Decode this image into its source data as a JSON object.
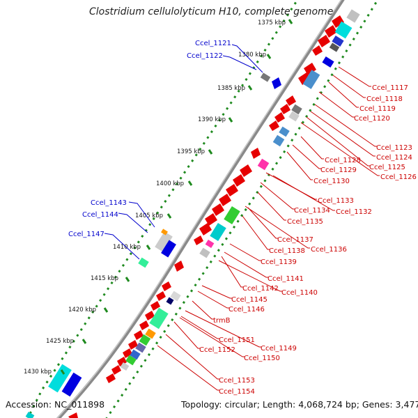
{
  "title": "Clostridium cellulolyticum H10, complete genome",
  "accession": "Accession: NC_011898",
  "summary": "Topology: circular; Length: 4,068,724 bp; Genes: 3,477",
  "ticks": [
    "1375 kbp",
    "1380 kbp",
    "1385 kbp",
    "1390 kbp",
    "1395 kbp",
    "1400 kbp",
    "1405 kbp",
    "1410 kbp",
    "1415 kbp",
    "1420 kbp",
    "1425 kbp",
    "1430 kbp"
  ],
  "genes_left": [
    "Ccel_1121",
    "Ccel_1122",
    "Ccel_1143",
    "Ccel_1144",
    "Ccel_1147"
  ],
  "genes_right": [
    "Ccel_1117",
    "Ccel_1118",
    "Ccel_1119",
    "Ccel_1120",
    "Ccel_1123",
    "Ccel_1124",
    "Ccel_1125",
    "Ccel_1126",
    "Ccel_1128",
    "Ccel_1129",
    "Ccel_1130",
    "Ccel_1133",
    "Ccel_1134",
    "Ccel_1132",
    "Ccel_1135",
    "Ccel_1137",
    "Ccel_1138",
    "Ccel_1136",
    "Ccel_1139",
    "Ccel_1141",
    "Ccel_1142",
    "Ccel_1140",
    "Ccel_1145",
    "Ccel_1146",
    "trmB",
    "Ccel_1151",
    "Ccel_1149",
    "Ccel_1152",
    "Ccel_1150",
    "Ccel_1153",
    "Ccel_1154"
  ],
  "colors": {
    "forward_gene": "#e60000",
    "blue_gene": "#0000e0",
    "label_blue": "#0000cc",
    "label_red": "#cc0000",
    "dots": "#228b22",
    "backbone": "#888888"
  }
}
